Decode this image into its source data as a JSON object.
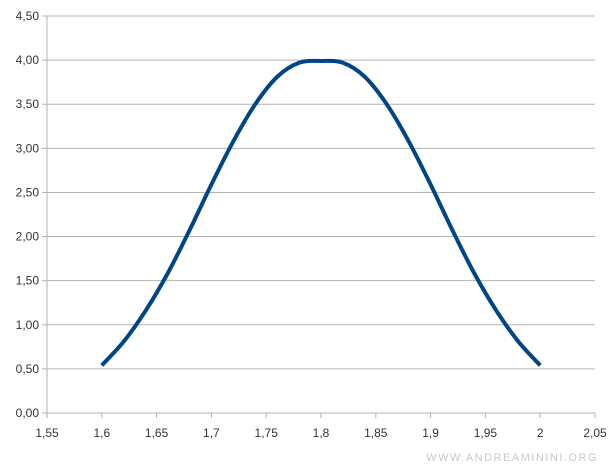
{
  "chart_data": {
    "type": "line",
    "title": "",
    "xlabel": "",
    "ylabel": "",
    "xlim": [
      1.55,
      2.05
    ],
    "ylim": [
      0,
      4.5
    ],
    "x_ticks": [
      1.55,
      1.6,
      1.65,
      1.7,
      1.75,
      1.8,
      1.85,
      1.9,
      1.95,
      2,
      2.05
    ],
    "x_tick_labels": [
      "1,55",
      "1,6",
      "1,65",
      "1,7",
      "1,75",
      "1,8",
      "1,85",
      "1,9",
      "1,95",
      "2",
      "2,05"
    ],
    "y_ticks": [
      0,
      0.5,
      1,
      1.5,
      2,
      2.5,
      3,
      3.5,
      4,
      4.5
    ],
    "y_tick_labels": [
      "0,00",
      "0,50",
      "1,00",
      "1,50",
      "2,00",
      "2,50",
      "3,00",
      "3,50",
      "4,00",
      "4,50"
    ],
    "grid": "horizontal",
    "legend": "none",
    "series": [
      {
        "color": "#004586",
        "x": [
          1.6,
          1.62,
          1.64,
          1.66,
          1.68,
          1.7,
          1.72,
          1.74,
          1.76,
          1.78,
          1.8,
          1.82,
          1.84,
          1.86,
          1.88,
          1.9,
          1.92,
          1.94,
          1.96,
          1.98,
          2.0
        ],
        "values": [
          0.54,
          0.81,
          1.16,
          1.58,
          2.07,
          2.59,
          3.08,
          3.5,
          3.81,
          3.97,
          3.99,
          3.97,
          3.81,
          3.5,
          3.08,
          2.59,
          2.07,
          1.58,
          1.16,
          0.81,
          0.54
        ]
      }
    ]
  },
  "watermark": "WWW.ANDREAMININI.ORG"
}
